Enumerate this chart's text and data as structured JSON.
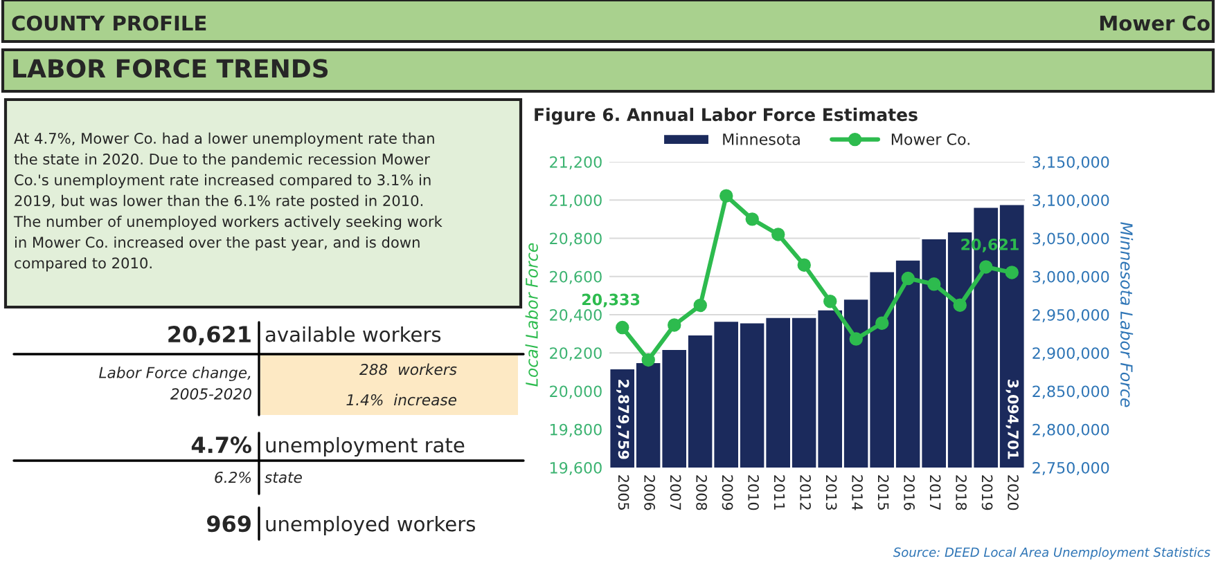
{
  "chart_data": {
    "type": "bar",
    "title": "Figure 6. Annual Labor Force Estimates",
    "ylabel": "Local Labor Force",
    "y2label": "Minnesota Labor Force",
    "categories": [
      "2005",
      "2006",
      "2007",
      "2008",
      "2009",
      "2010",
      "2011",
      "2012",
      "2013",
      "2014",
      "2015",
      "2016",
      "2017",
      "2018",
      "2019",
      "2020"
    ],
    "series": [
      {
        "name": "Minnesota",
        "axis": "y2",
        "color": "#1b2a5c",
        "values": [
          2879759,
          2888000,
          2905000,
          2924000,
          2942000,
          2940000,
          2947000,
          2947000,
          2957000,
          2971000,
          3007000,
          3022000,
          3050000,
          3059000,
          3091000,
          3094701
        ],
        "value_labels": [
          "2,879,759",
          null,
          null,
          null,
          null,
          null,
          null,
          null,
          null,
          null,
          null,
          null,
          null,
          null,
          null,
          "3,094,701"
        ]
      },
      {
        "name": "Mower Co.",
        "type": "line",
        "color": "#2dbb4e",
        "marker": "circle",
        "values": [
          20333,
          20163,
          20346,
          20449,
          21022,
          20900,
          20820,
          20660,
          20470,
          20273,
          20356,
          20590,
          20560,
          20450,
          20650,
          20621
        ],
        "value_labels": [
          "20,333",
          null,
          null,
          null,
          null,
          null,
          null,
          null,
          null,
          null,
          null,
          null,
          null,
          null,
          null,
          "20,621"
        ]
      }
    ],
    "ylim": [
      19600,
      21200
    ],
    "yticks": [
      {
        "value": 19600,
        "label": "19,600"
      },
      {
        "value": 19800,
        "label": "19,800"
      },
      {
        "value": 20000,
        "label": "20,000"
      },
      {
        "value": 20200,
        "label": "20,200"
      },
      {
        "value": 20400,
        "label": "20,400"
      },
      {
        "value": 20600,
        "label": "20,600"
      },
      {
        "value": 20800,
        "label": "20,800"
      },
      {
        "value": 21000,
        "label": "21,000"
      },
      {
        "value": 21200,
        "label": "21,200"
      }
    ],
    "y2lim": [
      2750000,
      3150000
    ],
    "y2ticks": [
      {
        "value": 2750000,
        "label": "2,750,000"
      },
      {
        "value": 2800000,
        "label": "2,800,000"
      },
      {
        "value": 2850000,
        "label": "2,850,000"
      },
      {
        "value": 2900000,
        "label": "2,900,000"
      },
      {
        "value": 2950000,
        "label": "2,950,000"
      },
      {
        "value": 3000000,
        "label": "3,000,000"
      },
      {
        "value": 3050000,
        "label": "3,050,000"
      },
      {
        "value": 3100000,
        "label": "3,100,000"
      },
      {
        "value": 3150000,
        "label": "3,150,000"
      }
    ],
    "grid": "y",
    "legend": "top",
    "annotations": [
      "COUNTY PROFILE",
      "Mower Co",
      "LABOR FORCE TRENDS",
      "At 4.7%, Mower Co. had a lower unemployment rate than\nthe state in 2020. Due to the pandemic recession Mower\nCo.'s unemployment rate increased compared to 3.1% in\n2019, but was lower than the 6.1% rate posted in 2010.\nThe number of unemployed workers actively seeking work\nin Mower Co. increased over the past year, and is down\ncompared to 2010.",
      "20,621",
      "available workers",
      "Labor Force change,\n2005-2020",
      "288  workers",
      "1.4%  increase",
      "4.7%",
      "unemployment rate",
      "6.2%",
      "state",
      "969",
      "unemployed workers",
      "Source: DEED Local Area Unemployment Statistics"
    ]
  }
}
